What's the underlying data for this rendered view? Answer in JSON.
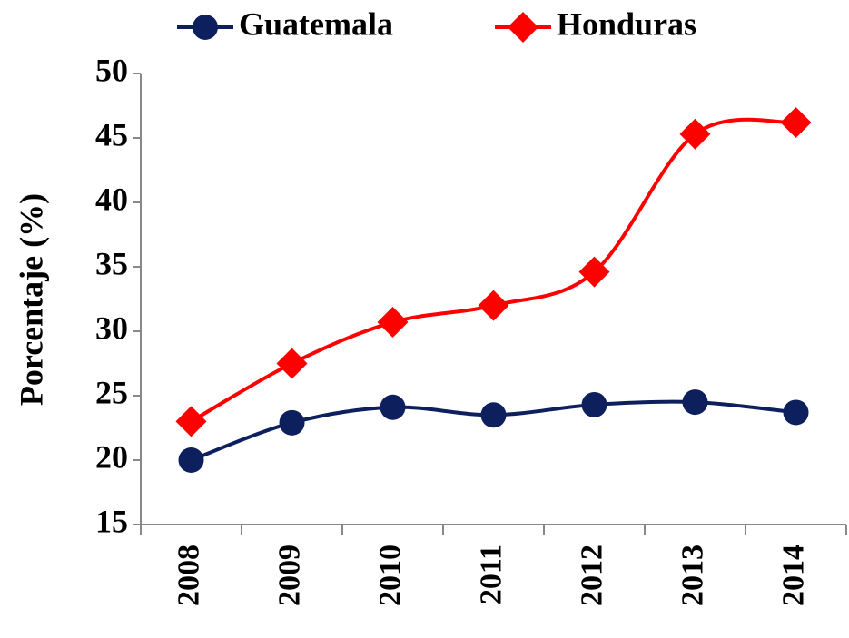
{
  "chart_data": {
    "type": "line",
    "y_label": "Porcentaje (%)",
    "categories": [
      "2008",
      "2009",
      "2010",
      "2011",
      "2012",
      "2013",
      "2014"
    ],
    "series": [
      {
        "name": "Guatemala",
        "color": "#0d1f5c",
        "marker": "circle",
        "values": [
          20.0,
          22.9,
          24.1,
          23.5,
          24.3,
          24.5,
          23.7
        ]
      },
      {
        "name": "Honduras",
        "color": "#ff0000",
        "marker": "diamond",
        "values": [
          23.0,
          27.5,
          30.7,
          32.0,
          34.6,
          45.3,
          46.2
        ]
      }
    ],
    "ylim": [
      15,
      50
    ],
    "yticks": [
      15,
      20,
      25,
      30,
      35,
      40,
      45,
      50
    ],
    "smooth": true,
    "legend": "top"
  }
}
